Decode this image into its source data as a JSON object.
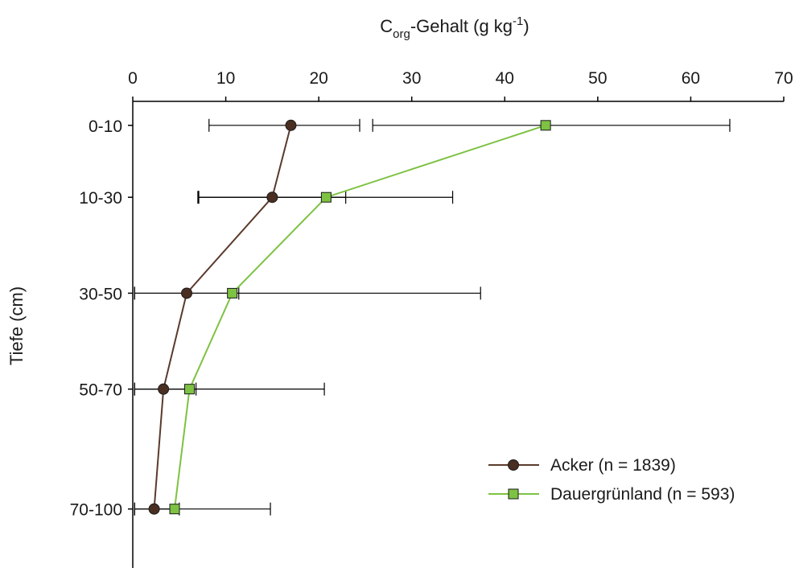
{
  "chart_data": {
    "type": "line",
    "orientation": "horizontal-value-axis-top",
    "title": "",
    "xlabel": {
      "main": "C",
      "subscript": "org",
      "rest": "-Gehalt (g kg",
      "superscript": "-1",
      "close": ")"
    },
    "ylabel": "Tiefe (cm)",
    "xlim": [
      0,
      70
    ],
    "x_ticks": [
      0,
      10,
      20,
      30,
      40,
      50,
      60,
      70
    ],
    "x_tick_labels": [
      "0",
      "10",
      "20",
      "30",
      "40",
      "50",
      "60",
      "70"
    ],
    "categories": [
      "0-10",
      "10-30",
      "30-50",
      "50-70",
      "70-100"
    ],
    "category_depths": [
      5,
      20,
      40,
      60,
      85
    ],
    "grid": false,
    "legend_position": "bottom-right",
    "series": [
      {
        "name": "Acker (n = 1839)",
        "color": "#5a3a2c",
        "marker": "circle",
        "values": [
          17,
          15,
          5.8,
          3.3,
          2.3
        ],
        "err_low": [
          8.2,
          7.1,
          0.2,
          0.2,
          0.2
        ],
        "err_high": [
          24.4,
          22.9,
          11.4,
          6.8,
          5.0
        ]
      },
      {
        "name": "Dauergrünland (n = 593)",
        "color": "#7dc242",
        "marker": "square",
        "values": [
          44.4,
          20.8,
          10.7,
          6.1,
          4.5
        ],
        "err_low": [
          25.8,
          7.0,
          0.2,
          0.2,
          0.2
        ],
        "err_high": [
          64.2,
          34.4,
          37.4,
          20.6,
          14.8
        ]
      }
    ]
  }
}
